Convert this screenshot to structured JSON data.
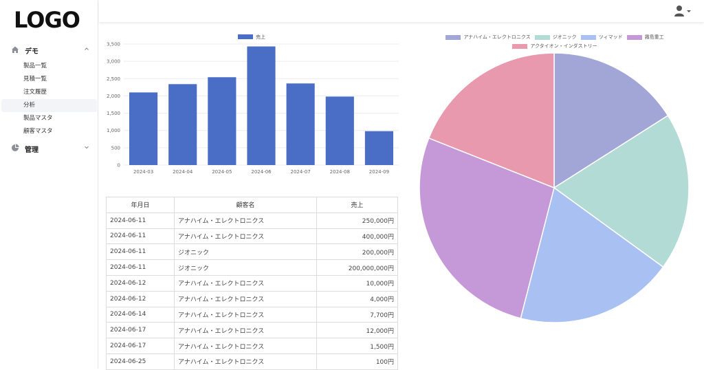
{
  "app": {
    "logo": "LOGO"
  },
  "sidebar": {
    "groups": [
      {
        "label": "デモ",
        "icon": "home-icon",
        "expanded": true,
        "items": [
          {
            "label": "製品一覧"
          },
          {
            "label": "見積一覧"
          },
          {
            "label": "注文履歴"
          },
          {
            "label": "分析",
            "active": true
          },
          {
            "label": "製品マスタ"
          },
          {
            "label": "顧客マスタ"
          }
        ]
      },
      {
        "label": "管理",
        "icon": "pie-chart-icon",
        "expanded": false,
        "items": []
      }
    ]
  },
  "header": {
    "user_icon": "user-icon"
  },
  "bar_chart": {
    "chart_data": {
      "type": "bar",
      "categories": [
        "2024-03",
        "2024-04",
        "2024-05",
        "2024-06",
        "2024-07",
        "2024-08",
        "2024-09"
      ],
      "series": [
        {
          "name": "売上",
          "values": [
            2100,
            2340,
            2540,
            3430,
            2360,
            1980,
            980
          ],
          "color": "#4a6dc5"
        }
      ],
      "ylim": [
        0,
        3500
      ],
      "yticks": [
        "0",
        "500",
        "1,000",
        "1,500",
        "2,000",
        "2,500",
        "3,000",
        "3,500"
      ],
      "legend": "top",
      "grid": true
    }
  },
  "pie_chart": {
    "chart_data": {
      "type": "pie",
      "labels": [
        "アナハイム・エレクトロニクス",
        "ジオニック",
        "ツィマッド",
        "霧島重工",
        "アクタイオン・インダストリー"
      ],
      "values": [
        16,
        19,
        19,
        27,
        19
      ],
      "colors": [
        "#a1a6d6",
        "#b3dbd6",
        "#a8c0f2",
        "#c598d7",
        "#e899ae"
      ],
      "legend": "top"
    }
  },
  "table": {
    "headers": [
      "年月日",
      "顧客名",
      "売上"
    ],
    "rows": [
      [
        "2024-06-11",
        "アナハイム・エレクトロニクス",
        "250,000円"
      ],
      [
        "2024-06-11",
        "アナハイム・エレクトロニクス",
        "400,000円"
      ],
      [
        "2024-06-11",
        "ジオニック",
        "200,000円"
      ],
      [
        "2024-06-11",
        "ジオニック",
        "200,000,000円"
      ],
      [
        "2024-06-12",
        "アナハイム・エレクトロニクス",
        "10,000円"
      ],
      [
        "2024-06-12",
        "アナハイム・エレクトロニクス",
        "4,000円"
      ],
      [
        "2024-06-14",
        "アナハイム・エレクトロニクス",
        "7,700円"
      ],
      [
        "2024-06-17",
        "アナハイム・エレクトロニクス",
        "12,000円"
      ],
      [
        "2024-06-17",
        "アナハイム・エレクトロニクス",
        "1,500円"
      ],
      [
        "2024-06-25",
        "アナハイム・エレクトロニクス",
        "100円"
      ]
    ]
  }
}
